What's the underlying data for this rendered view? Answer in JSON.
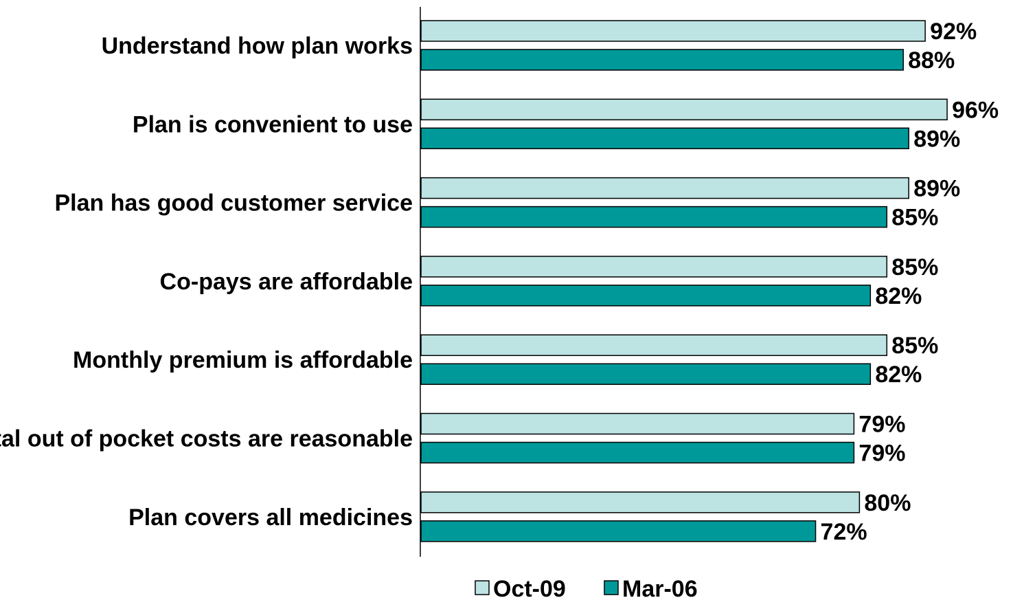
{
  "chart_data": {
    "type": "bar",
    "orientation": "horizontal",
    "categories": [
      "Understand how plan works",
      "Plan is convenient to use",
      "Plan has good customer service",
      "Co-pays are affordable",
      "Monthly premium is affordable",
      "Total out of pocket costs are reasonable",
      "Plan covers all medicines"
    ],
    "series": [
      {
        "name": "Oct-09",
        "color": "#bde3e3",
        "values": [
          92,
          96,
          89,
          85,
          85,
          79,
          80
        ],
        "labels": [
          "92%",
          "96%",
          "89%",
          "85%",
          "85%",
          "79%",
          "80%"
        ]
      },
      {
        "name": "Mar-06",
        "color": "#009999",
        "values": [
          88,
          89,
          85,
          82,
          82,
          79,
          72
        ],
        "labels": [
          "88%",
          "89%",
          "85%",
          "82%",
          "82%",
          "79%",
          "72%"
        ]
      }
    ],
    "xlim": [
      0,
      100
    ],
    "grid": false,
    "legend": "bottom-center"
  }
}
